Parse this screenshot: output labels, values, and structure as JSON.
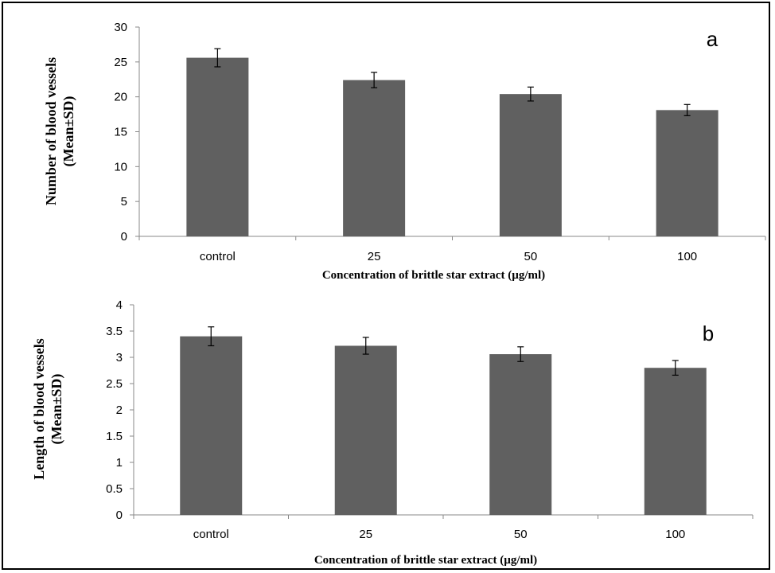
{
  "chart_data": [
    {
      "type": "bar",
      "panel_label": "a",
      "categories": [
        "control",
        "25",
        "50",
        "100"
      ],
      "values": [
        25.6,
        22.4,
        20.4,
        18.1
      ],
      "errors": [
        1.3,
        1.1,
        1.0,
        0.8
      ],
      "xlabel": "Concentration of brittle star extract (µg/ml)",
      "ylabel_lines": [
        "Number of blood vessels",
        "(Mean±SD)"
      ],
      "ylim": [
        0,
        30
      ],
      "yticks": [
        "0",
        "5",
        "10",
        "15",
        "20",
        "25",
        "30"
      ],
      "ytick_values": [
        0,
        5,
        10,
        15,
        20,
        25,
        30
      ],
      "bar_color": "#606060",
      "grid": false,
      "legend": "none"
    },
    {
      "type": "bar",
      "panel_label": "b",
      "categories": [
        "control",
        "25",
        "50",
        "100"
      ],
      "values": [
        3.4,
        3.22,
        3.06,
        2.8
      ],
      "errors": [
        0.18,
        0.16,
        0.14,
        0.14
      ],
      "xlabel": "Concentration of brittle star extract (µg/ml)",
      "ylabel_lines": [
        "Length of blood vessels",
        "(Mean±SD)"
      ],
      "ylim": [
        0,
        4
      ],
      "yticks": [
        "0",
        "0.5",
        "1",
        "1.5",
        "2",
        "2.5",
        "3",
        "3.5",
        "4"
      ],
      "ytick_values": [
        0,
        0.5,
        1,
        1.5,
        2,
        2.5,
        3,
        3.5,
        4
      ],
      "bar_color": "#606060",
      "grid": false,
      "legend": "none"
    }
  ]
}
